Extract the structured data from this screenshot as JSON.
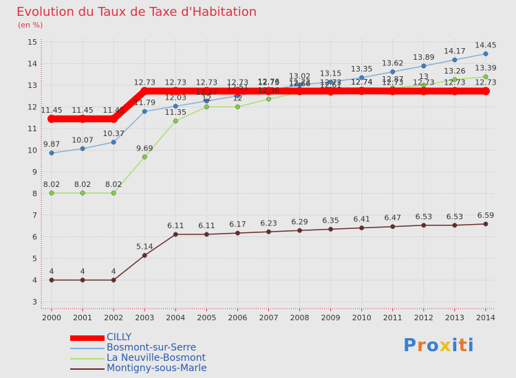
{
  "title": "Evolution du Taux de Taxe d'Habitation",
  "subtitle": "(en %)",
  "logo": {
    "letters": [
      "P",
      "r",
      "o",
      "x",
      "i",
      "t",
      "i"
    ],
    "colors": [
      "#3a7fd0",
      "#e87830",
      "#3a7fd0",
      "#e8c020",
      "#3a7fd0",
      "#e87830",
      "#3a7fd0"
    ]
  },
  "chart_data": {
    "type": "line",
    "x": [
      "2000",
      "2001",
      "2002",
      "2003",
      "2004",
      "2005",
      "2006",
      "2007",
      "2008",
      "2009",
      "2010",
      "2011",
      "2012",
      "2013",
      "2014"
    ],
    "ylim": [
      3,
      15
    ],
    "yticks": [
      3,
      4,
      5,
      6,
      7,
      8,
      9,
      10,
      11,
      12,
      13,
      14,
      15
    ],
    "grid": true,
    "legend_position": "bottom-left",
    "series": [
      {
        "name": "CILLY",
        "color": "#ff0000",
        "marker": "#ff0000",
        "values": [
          11.45,
          11.45,
          11.45,
          12.73,
          12.73,
          12.73,
          12.73,
          12.73,
          12.73,
          12.73,
          12.74,
          12.73,
          12.73,
          12.73,
          12.73
        ],
        "labels": [
          "11.45",
          "11.45",
          "11.45",
          "12.73",
          "12.73",
          "12.73",
          "12.73",
          "12.73",
          "12.73",
          "12.73",
          "12.74",
          "12.73",
          "12.73",
          "12.73",
          "12.73"
        ]
      },
      {
        "name": "Bosmont-sur-Serre",
        "color": "#7fb0dc",
        "marker": "#3a80c8",
        "values": [
          9.87,
          10.07,
          10.37,
          11.79,
          12.03,
          12.27,
          12.51,
          12.76,
          13.02,
          13.15,
          13.35,
          13.62,
          13.89,
          14.17,
          14.45
        ],
        "labels": [
          "9.87",
          "10.07",
          "10.37",
          "11.79",
          "12.03",
          "12.27",
          "12.51",
          "12.76",
          "13.02",
          "13.15",
          "13.35",
          "13.62",
          "13.89",
          "14.17",
          "14.45"
        ]
      },
      {
        "name": "La Neuville-Bosmont",
        "color": "#a8e070",
        "marker": "#80d040",
        "values": [
          8.02,
          8.02,
          8.02,
          9.69,
          11.35,
          12,
          12,
          12.36,
          12.66,
          12.61,
          12.74,
          12.87,
          13,
          13.26,
          13.39
        ],
        "labels": [
          "8.02",
          "8.02",
          "8.02",
          "9.69",
          "11.35",
          "12",
          "12",
          "12.36",
          "12.66",
          "12.61",
          "12.74",
          "12.87",
          "13",
          "13.26",
          "13.39"
        ]
      },
      {
        "name": "Montigny-sous-Marle",
        "color": "#6a2a2a",
        "marker": "#6a2a2a",
        "values": [
          4,
          4,
          4,
          5.14,
          6.11,
          6.11,
          6.17,
          6.23,
          6.29,
          6.35,
          6.41,
          6.47,
          6.53,
          6.53,
          6.59
        ],
        "labels": [
          "4",
          "4",
          "4",
          "5.14",
          "6.11",
          "6.11",
          "6.17",
          "6.23",
          "6.29",
          "6.35",
          "6.41",
          "6.47",
          "6.53",
          "6.53",
          "6.59"
        ]
      }
    ]
  }
}
